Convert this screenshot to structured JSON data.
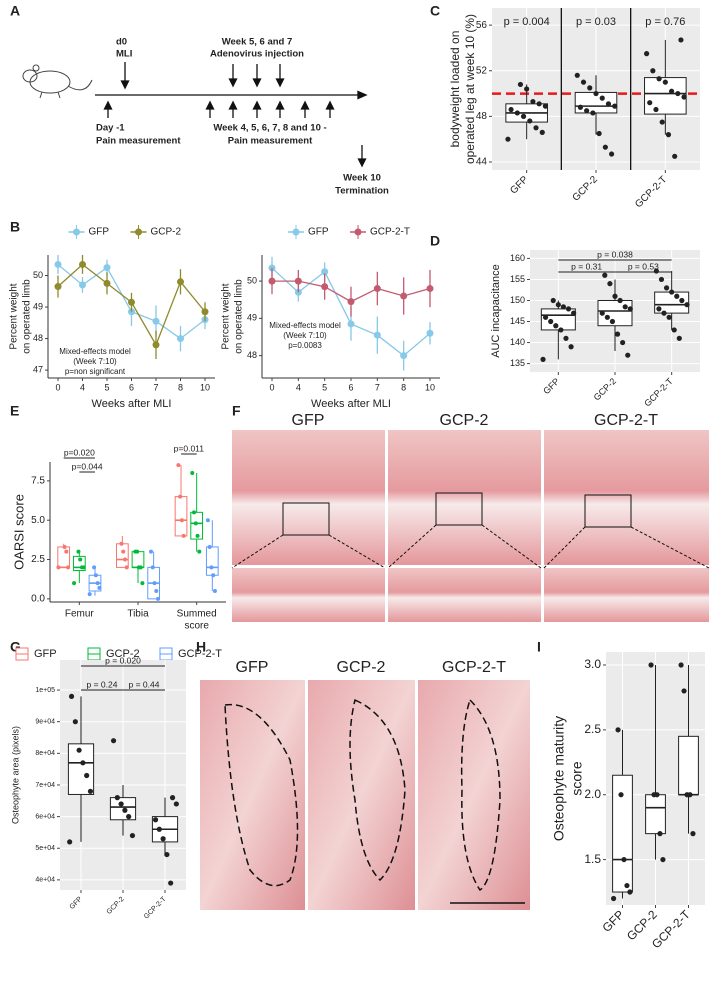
{
  "panel_labels": [
    "A",
    "B",
    "C",
    "D",
    "E",
    "F",
    "G",
    "H",
    "I"
  ],
  "timeline": {
    "top_labels": [
      [
        "d0",
        "MLI"
      ],
      [
        "Week 5, 6 and 7",
        "Adenovirus injection"
      ]
    ],
    "bottom_labels": [
      [
        "Day -1",
        "Pain measurement"
      ],
      [
        "Week 4, 5, 6, 7, 8 and 10 -",
        "Pain measurement"
      ],
      [
        "Week 10",
        "Termination"
      ]
    ]
  },
  "histology_f": {
    "labels": [
      "GFP",
      "GCP-2",
      "GCP-2-T"
    ]
  },
  "histology_h": {
    "labels": [
      "GFP",
      "GCP-2",
      "GCP-2-T"
    ]
  },
  "chart_data": [
    {
      "type": "line",
      "ylabel": [
        "Percent weight",
        "on operated limb"
      ],
      "xlabel": "Weeks after MLI",
      "categories": [
        "0",
        "4",
        "5",
        "6",
        "7",
        "8",
        "10"
      ],
      "ylim": [
        46.75,
        50.65
      ],
      "yticks": [
        47,
        48,
        49,
        50
      ],
      "grid": false,
      "annotations": [
        "Mixed-effects model",
        "(Week 7:10)",
        "p=non significant"
      ],
      "series": [
        {
          "name": "GFP",
          "color": "#86c9e8",
          "values": [
            50.35,
            49.7,
            50.25,
            48.85,
            48.55,
            48.0,
            48.6
          ],
          "errors": [
            0.3,
            0.25,
            0.25,
            0.45,
            0.5,
            0.4,
            0.3
          ]
        },
        {
          "name": "GCP-2",
          "color": "#8f8a2c",
          "values": [
            49.65,
            50.35,
            49.75,
            49.15,
            47.8,
            49.8,
            48.85
          ],
          "errors": [
            0.35,
            0.3,
            0.35,
            0.3,
            0.45,
            0.4,
            0.3
          ]
        }
      ]
    },
    {
      "type": "line",
      "ylabel": [
        "Percent weight",
        "on operated limb"
      ],
      "xlabel": "Weeks after MLI",
      "categories": [
        "0",
        "4",
        "5",
        "6",
        "7",
        "8",
        "10"
      ],
      "ylim": [
        47.4,
        50.7
      ],
      "yticks": [
        48,
        49,
        50
      ],
      "grid": false,
      "annotations": [
        "Mixed-effects model",
        "(Week 7:10)",
        "p=0.0083"
      ],
      "series": [
        {
          "name": "GFP",
          "color": "#86c9e8",
          "values": [
            50.35,
            49.7,
            50.25,
            48.85,
            48.55,
            48.0,
            48.6
          ],
          "errors": [
            0.3,
            0.25,
            0.25,
            0.45,
            0.5,
            0.4,
            0.3
          ]
        },
        {
          "name": "GCP-2-T",
          "color": "#c35b70",
          "values": [
            50.0,
            50.0,
            49.85,
            49.45,
            49.8,
            49.6,
            49.8
          ],
          "errors": [
            0.35,
            0.3,
            0.35,
            0.4,
            0.45,
            0.5,
            0.5
          ]
        }
      ]
    },
    {
      "type": "box",
      "ylabel": [
        "bodyweight loaded on",
        "operated leg at week 10 (%)"
      ],
      "categories": [
        "GFP",
        "GCP-2",
        "GCP-2-T"
      ],
      "ylim": [
        43.3,
        57.5
      ],
      "yticks": [
        44,
        48,
        52,
        56
      ],
      "grid": true,
      "separators": true,
      "pvalues": [
        "p = 0.004",
        "p = 0.03",
        "p = 0.76"
      ],
      "refline": {
        "value": 50,
        "color": "#e8191c"
      },
      "series": [
        {
          "color": "#222222",
          "boxes": [
            {
              "whislo": 46.0,
              "q1": 47.5,
              "med": 48.3,
              "q3": 49.1,
              "whishi": 50.8,
              "points": [
                46.0,
                46.6,
                47.0,
                47.6,
                48.0,
                48.3,
                48.6,
                48.9,
                49.1,
                49.3,
                50.4,
                50.8
              ]
            },
            {
              "whislo": 46.4,
              "q1": 48.3,
              "med": 48.9,
              "q3": 50.1,
              "whishi": 51.6,
              "points": [
                44.7,
                45.3,
                46.5,
                48.3,
                48.5,
                48.8,
                48.9,
                49.1,
                49.6,
                50.0,
                50.5,
                51.0,
                51.6
              ]
            },
            {
              "whislo": 46.4,
              "q1": 48.2,
              "med": 50.0,
              "q3": 51.4,
              "whishi": 54.7,
              "points": [
                44.5,
                46.4,
                47.5,
                48.6,
                49.2,
                49.7,
                50.0,
                50.2,
                51.0,
                51.3,
                52.0,
                53.5,
                54.7
              ]
            }
          ]
        }
      ]
    },
    {
      "type": "box",
      "ylabel": [
        "AUC incapacitance"
      ],
      "categories": [
        "GFP",
        "GCP-2",
        "GCP-2-T"
      ],
      "ylim": [
        133,
        162
      ],
      "yticks": [
        135,
        140,
        145,
        150,
        155,
        160
      ],
      "grid": true,
      "brackets": [
        {
          "label": "p = 0.038",
          "between": [
            "GFP",
            "GCP-2-T"
          ]
        },
        {
          "label": "p = 0.31",
          "between": [
            "GFP",
            "GCP-2"
          ]
        },
        {
          "label": "p = 0.53",
          "between": [
            "GCP-2",
            "GCP-2-T"
          ]
        }
      ],
      "series": [
        {
          "color": "#222222",
          "boxes": [
            {
              "whislo": 136,
              "q1": 143,
              "med": 146.5,
              "q3": 148,
              "whishi": 150,
              "points": [
                136,
                139,
                141,
                143,
                144,
                145,
                146,
                147,
                148,
                148.5,
                149,
                150
              ]
            },
            {
              "whislo": 138,
              "q1": 144,
              "med": 147.5,
              "q3": 150,
              "whishi": 155,
              "points": [
                137,
                140,
                142,
                145,
                146,
                147,
                148,
                148.5,
                150,
                151,
                154,
                156
              ]
            },
            {
              "whislo": 143,
              "q1": 147,
              "med": 149,
              "q3": 152,
              "whishi": 157,
              "points": [
                141,
                143,
                146,
                147,
                148,
                149,
                150,
                151,
                152,
                153,
                155,
                157
              ]
            }
          ]
        }
      ]
    },
    {
      "type": "box",
      "ylabel": [
        "OARSI score"
      ],
      "categories": [
        "Femur",
        "Tibia",
        [
          "Summed",
          "score"
        ]
      ],
      "ylim": [
        -0.2,
        8.7
      ],
      "yticks": [
        {
          "value": 0,
          "label": "0.0"
        },
        2.5,
        {
          "value": 5,
          "label": "5.0"
        },
        7.5
      ],
      "grid": false,
      "brackets": [
        {
          "label": "p=0.020",
          "category": 0,
          "between": [
            "GFP",
            "GCP-2-T"
          ]
        },
        {
          "label": "p=0.044",
          "category": 0,
          "between": [
            "GCP-2",
            "GCP-2-T"
          ]
        },
        {
          "label": "p=0.011",
          "category": 2,
          "between": [
            "GFP",
            "GCP-2"
          ]
        }
      ],
      "series": [
        {
          "name": "GFP",
          "color": "#f8766d",
          "boxes": [
            {
              "whislo": 2.0,
              "q1": 2.0,
              "med": 2.0,
              "q3": 3.3,
              "whishi": 3.5,
              "points": [
                2.0,
                2.0,
                3.0,
                3.3
              ]
            },
            {
              "whislo": 2.0,
              "q1": 2.0,
              "med": 2.5,
              "q3": 3.5,
              "whishi": 4.0,
              "points": [
                2.0,
                2.5,
                3.0,
                3.5
              ]
            },
            {
              "whislo": 4.0,
              "q1": 4.0,
              "med": 5.0,
              "q3": 6.5,
              "whishi": 8.5,
              "points": [
                4.0,
                5.0,
                6.5,
                8.5
              ]
            }
          ]
        },
        {
          "name": "GCP-2",
          "color": "#00ba38",
          "boxes": [
            {
              "whislo": 1.0,
              "q1": 1.8,
              "med": 2.0,
              "q3": 2.7,
              "whishi": 3.0,
              "points": [
                1.0,
                2.0,
                2.0,
                2.5,
                3.0
              ]
            },
            {
              "whislo": 1.0,
              "q1": 2.0,
              "med": 2.0,
              "q3": 3.0,
              "whishi": 3.0,
              "points": [
                1.0,
                2.0,
                2.0,
                3.0,
                3.0
              ]
            },
            {
              "whislo": 3.0,
              "q1": 3.8,
              "med": 4.8,
              "q3": 5.5,
              "whishi": 8.0,
              "points": [
                3.0,
                4.0,
                4.8,
                5.5,
                8.0
              ]
            }
          ]
        },
        {
          "name": "GCP-2-T",
          "color": "#619cff",
          "boxes": [
            {
              "whislo": 0.2,
              "q1": 0.5,
              "med": 1.0,
              "q3": 1.5,
              "whishi": 2.0,
              "points": [
                0.3,
                0.7,
                1.0,
                1.5,
                2.0
              ]
            },
            {
              "whislo": 0.0,
              "q1": 0.0,
              "med": 1.0,
              "q3": 2.0,
              "whishi": 3.0,
              "points": [
                0.0,
                0.5,
                1.0,
                2.0,
                3.0
              ]
            },
            {
              "whislo": 0.5,
              "q1": 1.5,
              "med": 2.0,
              "q3": 3.3,
              "whishi": 5.0,
              "points": [
                0.5,
                1.5,
                2.0,
                3.3,
                5.0
              ]
            }
          ]
        }
      ]
    },
    {
      "type": "box",
      "ylabel": [
        "Osteophyte area (pixels)"
      ],
      "categories": [
        "GFP",
        "GCP-2",
        "GCP-2-T"
      ],
      "ylim": [
        36800,
        109500
      ],
      "yticks": [
        {
          "value": 40000,
          "label": "4e+04"
        },
        {
          "value": 50000,
          "label": "5e+04"
        },
        {
          "value": 60000,
          "label": "6e+04"
        },
        {
          "value": 70000,
          "label": "7e+04"
        },
        {
          "value": 80000,
          "label": "8e+04"
        },
        {
          "value": 90000,
          "label": "9e+04"
        },
        {
          "value": 100000,
          "label": "1e+05"
        }
      ],
      "grid": true,
      "brackets": [
        {
          "label": "p = 0.020",
          "between": [
            "GFP",
            "GCP-2-T"
          ]
        },
        {
          "label": "p = 0.24",
          "between": [
            "GFP",
            "GCP-2"
          ]
        },
        {
          "label": "p = 0.44",
          "between": [
            "GCP-2",
            "GCP-2-T"
          ]
        }
      ],
      "series": [
        {
          "color": "#222222",
          "boxes": [
            {
              "whislo": 52000,
              "q1": 67000,
              "med": 77000,
              "q3": 83000,
              "whishi": 98000,
              "points": [
                52000,
                68000,
                73000,
                77000,
                81000,
                90000,
                98000
              ]
            },
            {
              "whislo": 54000,
              "q1": 59000,
              "med": 63000,
              "q3": 66000,
              "whishi": 70000,
              "points": [
                54000,
                60000,
                62000,
                64000,
                66000,
                84000
              ]
            },
            {
              "whislo": 48000,
              "q1": 52000,
              "med": 56000,
              "q3": 60000,
              "whishi": 66000,
              "points": [
                39000,
                48000,
                53000,
                56000,
                59000,
                64000,
                66000
              ]
            }
          ]
        }
      ]
    },
    {
      "type": "box",
      "ylabel": [
        "Osteophyte maturity",
        "score"
      ],
      "categories": [
        "GFP",
        "GCP-2",
        "GCP-2-T"
      ],
      "ylim": [
        1.15,
        3.1
      ],
      "yticks": [
        1.5,
        {
          "value": 2,
          "label": "2.0"
        },
        2.5,
        {
          "value": 3,
          "label": "3.0"
        }
      ],
      "grid": true,
      "series": [
        {
          "color": "#222222",
          "boxes": [
            {
              "whislo": 1.2,
              "q1": 1.25,
              "med": 1.5,
              "q3": 2.15,
              "whishi": 2.5,
              "points": [
                1.2,
                1.25,
                1.3,
                1.5,
                2.0,
                2.5
              ]
            },
            {
              "whislo": 1.5,
              "q1": 1.7,
              "med": 1.9,
              "q3": 2.0,
              "whishi": 3.0,
              "points": [
                1.5,
                1.7,
                2.0,
                2.0,
                3.0
              ]
            },
            {
              "whislo": 1.7,
              "q1": 2.0,
              "med": 2.0,
              "q3": 2.45,
              "whishi": 3.0,
              "points": [
                1.7,
                2.0,
                2.0,
                2.8,
                3.0
              ]
            }
          ]
        }
      ]
    }
  ]
}
